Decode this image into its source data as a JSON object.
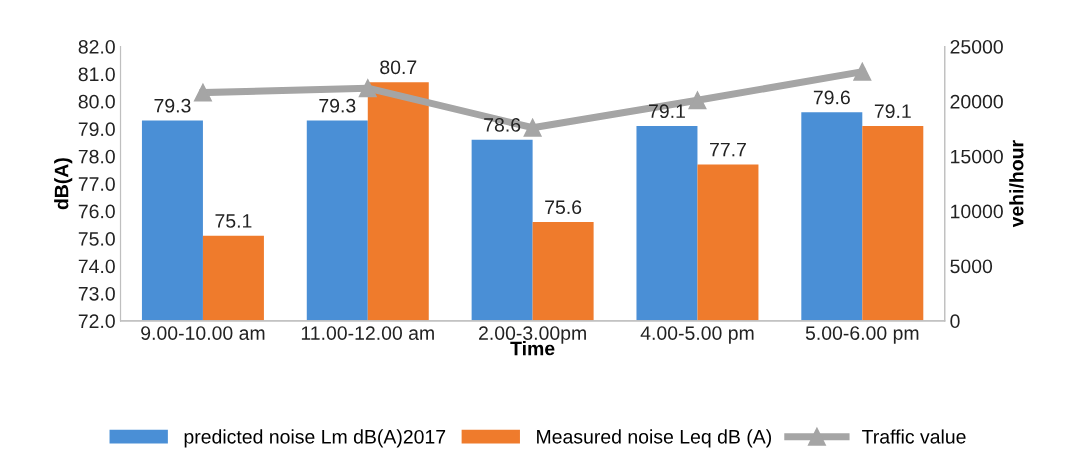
{
  "chart_data": {
    "type": "bar",
    "xlabel": "Time",
    "ylabel": "dB(A)",
    "y2label": "vehi/hour",
    "categories": [
      "9.00-10.00 am",
      "11.00-12.00 am",
      "2.00-3.00pm",
      "4.00-5.00 pm",
      "5.00-6.00 pm"
    ],
    "series": [
      {
        "name": "predicted noise Lm dB(A)2017",
        "color": "#4a8fd6",
        "values": [
          79.3,
          79.3,
          78.6,
          79.1,
          79.6
        ],
        "value_labels": [
          "79.3",
          "79.3",
          "78.6",
          "79.1",
          "79.6"
        ]
      },
      {
        "name": "Measured noise Leq dB (A)",
        "color": "#ef7b2c",
        "values": [
          75.1,
          80.7,
          75.6,
          77.7,
          79.1
        ],
        "value_labels": [
          "75.1",
          "80.7",
          "75.6",
          "77.7",
          "79.1"
        ]
      },
      {
        "name": "Traffic value",
        "type": "line",
        "axis": "y2",
        "color": "#a5a5a5",
        "marker": "triangle",
        "values": [
          20800,
          21200,
          17600,
          20100,
          22700
        ]
      }
    ],
    "ylim": [
      72,
      82
    ],
    "yticks": [
      {
        "value": 72,
        "label": "72.0"
      },
      {
        "value": 73,
        "label": "73.0"
      },
      {
        "value": 74,
        "label": "74.0"
      },
      {
        "value": 75,
        "label": "75.0"
      },
      {
        "value": 76,
        "label": "76.0"
      },
      {
        "value": 77,
        "label": "77.0"
      },
      {
        "value": 78,
        "label": "78.0"
      },
      {
        "value": 79,
        "label": "79.0"
      },
      {
        "value": 80,
        "label": "80.0"
      },
      {
        "value": 81,
        "label": "81.0"
      },
      {
        "value": 82,
        "label": "82.0"
      }
    ],
    "y2lim": [
      0,
      25000
    ],
    "y2ticks": [
      0,
      5000,
      10000,
      15000,
      20000,
      25000
    ],
    "grid": false,
    "legend": "bottom"
  }
}
